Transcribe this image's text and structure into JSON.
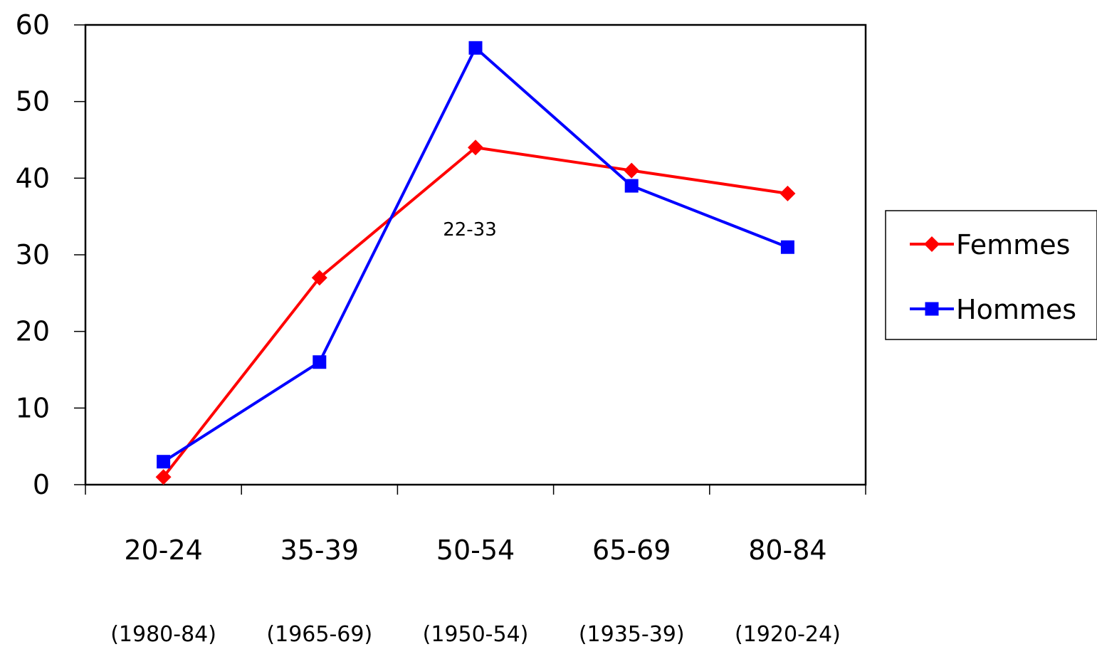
{
  "chart_data": {
    "type": "line",
    "categories": [
      "20-24",
      "35-39",
      "50-54",
      "65-69",
      "80-84"
    ],
    "category_sublabels": [
      "(1980-84)",
      "(1965-69)",
      "(1950-54)",
      "(1935-39)",
      "(1920-24)"
    ],
    "series": [
      {
        "name": "Femmes",
        "values": [
          1,
          27,
          44,
          41,
          38
        ],
        "color": "#ff0000",
        "marker": "diamond"
      },
      {
        "name": "Hommes",
        "values": [
          3,
          16,
          57,
          39,
          31
        ],
        "color": "#0000ff",
        "marker": "square"
      }
    ],
    "ylim": [
      0,
      60
    ],
    "yticks": [
      0,
      10,
      20,
      30,
      40,
      50,
      60
    ],
    "annotation": "22-33",
    "grid": false,
    "legend": "right"
  }
}
